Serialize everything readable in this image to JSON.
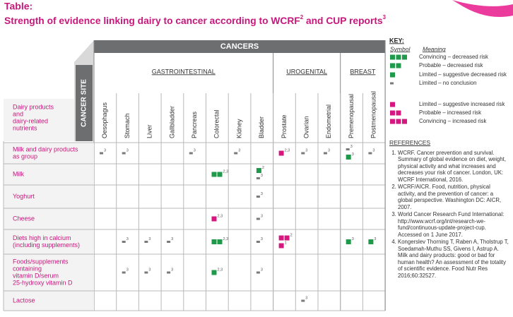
{
  "header": {
    "label": "Table:",
    "title": [
      "Strength of evidence linking dairy to cancer according to WCRF",
      "2",
      " and CUP reports",
      "3"
    ]
  },
  "table": {
    "banner": "CANCERS",
    "site_label": "CANCER SITE",
    "row_header": [
      "Dairy products",
      "and",
      "dairy-related",
      "nutrients"
    ],
    "groups": [
      {
        "label": "GASTROINTESTINAL",
        "columns": [
          "Oesophagus",
          "Stomach",
          "Liver",
          "Gallbladder",
          "Pancreas",
          "Colorectal",
          "Kidney",
          "Bladder"
        ]
      },
      {
        "label": "UROGENITAL",
        "columns": [
          "Prostate",
          "Ovarian",
          "Endometrial"
        ]
      },
      {
        "label": "BREAST",
        "columns": [
          "Premenopausal",
          "Postmenopausal"
        ]
      }
    ],
    "rows": [
      {
        "label": [
          "Milk and dairy products",
          "as group"
        ],
        "cells": [
          [
            {
              "key": 3,
              "ref": "3"
            }
          ],
          [
            {
              "key": 3,
              "ref": "3"
            }
          ],
          [],
          [],
          [
            {
              "key": 3,
              "ref": "3"
            }
          ],
          [],
          [
            {
              "key": 3,
              "ref": "3"
            }
          ],
          [],
          [
            {
              "key": 4,
              "ref": "2,3"
            }
          ],
          [
            {
              "key": 3,
              "ref": "3"
            }
          ],
          [
            {
              "key": 3,
              "ref": "3"
            }
          ],
          [
            {
              "key": 3,
              "ref": "3"
            },
            {
              "key": 2,
              "ref": "3"
            }
          ],
          [
            {
              "key": 3,
              "ref": "3"
            }
          ]
        ]
      },
      {
        "label": [
          "Milk"
        ],
        "cells": [
          [],
          [],
          [],
          [],
          [],
          [
            {
              "key": 1,
              "ref": "2,3"
            }
          ],
          [],
          [
            {
              "key": 2,
              "ref": "2"
            },
            {
              "key": 3,
              "ref": "3"
            }
          ],
          [],
          [],
          [],
          [],
          []
        ]
      },
      {
        "label": [
          "Yoghurt"
        ],
        "cells": [
          [],
          [],
          [],
          [],
          [],
          [],
          [],
          [
            {
              "key": 3,
              "ref": "3"
            }
          ],
          [],
          [],
          [],
          [],
          []
        ]
      },
      {
        "label": [
          "Cheese"
        ],
        "cells": [
          [],
          [],
          [],
          [],
          [],
          [
            {
              "key": 4,
              "ref": "2,3"
            }
          ],
          [],
          [
            {
              "key": 3,
              "ref": "3"
            }
          ],
          [],
          [],
          [],
          [],
          []
        ]
      },
      {
        "label": [
          "Diets high in calcium",
          "(including supplements)"
        ],
        "cells": [
          [],
          [
            {
              "key": 3,
              "ref": "3"
            }
          ],
          [
            {
              "key": 3,
              "ref": "3"
            }
          ],
          [
            {
              "key": 3,
              "ref": "3"
            }
          ],
          [],
          [
            {
              "key": 1,
              "ref": "2,3"
            }
          ],
          [],
          [
            {
              "key": 3,
              "ref": "3"
            }
          ],
          [
            {
              "key": 5,
              "ref": "2"
            },
            {
              "key": 4,
              "ref": "1"
            }
          ],
          [],
          [],
          [
            {
              "key": 2,
              "ref": "3"
            }
          ],
          [
            {
              "key": 2,
              "ref": "3"
            }
          ]
        ]
      },
      {
        "label": [
          "Foods/supplements",
          "containing",
          "vitamin D/serum",
          "25-hydroxy vitamin D"
        ],
        "cells": [
          [],
          [
            {
              "key": 3,
              "ref": "3"
            }
          ],
          [
            {
              "key": 3,
              "ref": "3"
            }
          ],
          [
            {
              "key": 3,
              "ref": "3"
            }
          ],
          [],
          [
            {
              "key": 2,
              "ref": "2,3"
            }
          ],
          [],
          [
            {
              "key": 3,
              "ref": "3"
            }
          ],
          [],
          [],
          [],
          [],
          []
        ]
      },
      {
        "label": [
          "Lactose"
        ],
        "cells": [
          [],
          [],
          [],
          [],
          [],
          [],
          [],
          [],
          [],
          [
            {
              "key": 3,
              "ref": "3"
            }
          ],
          [],
          [],
          []
        ]
      }
    ]
  },
  "key": {
    "title": "KEY:",
    "symbol_heading": "Symbol",
    "meaning_heading": "Meaning",
    "entries": [
      {
        "squares": 3,
        "color": "#1e9a4a",
        "meaning": "Convincing – decreased risk"
      },
      {
        "squares": 2,
        "color": "#1e9a4a",
        "meaning": "Probable – decreased risk"
      },
      {
        "squares": 1,
        "color": "#1e9a4a",
        "meaning": "Limited – suggestive decreased risk"
      },
      {
        "squares": 1,
        "color": "#7a7a7a",
        "meaning": "Limited – no conclusion"
      },
      {
        "squares": 1,
        "color": "#d6177f",
        "meaning": "Limited – suggestive increased risk"
      },
      {
        "squares": 2,
        "color": "#d6177f",
        "meaning": "Probable – increased risk"
      },
      {
        "squares": 3,
        "color": "#d6177f",
        "meaning": "Convincing – increased risk"
      }
    ]
  },
  "references": {
    "title": "REFERENCES",
    "items": [
      "WCRF. Cancer prevention and survival. Summary of global evidence on diet, weight, physical activity and what increases and decreases your risk of cancer. London, UK: WCRF International, 2016.",
      "WCRF/AICR. Food, nutrition, physical activity, and the prevention of cancer: a global perspective. Washington DC: AICR, 2007.",
      "World Cancer Research Fund International: http://www.wcrf.org/int/research-we-fund/continuous-update-project-cup. Accessed on 1 June 2017.",
      "Kongerslev Thorning T, Raben A, Tholstrup T, Soedamah-Muthu SS, Givens I, Astrup A. Milk and dairy products: good or bad for human health? An assessment of the totality of scientific evidence. Food Nutr Res 2016;60:32527."
    ]
  }
}
